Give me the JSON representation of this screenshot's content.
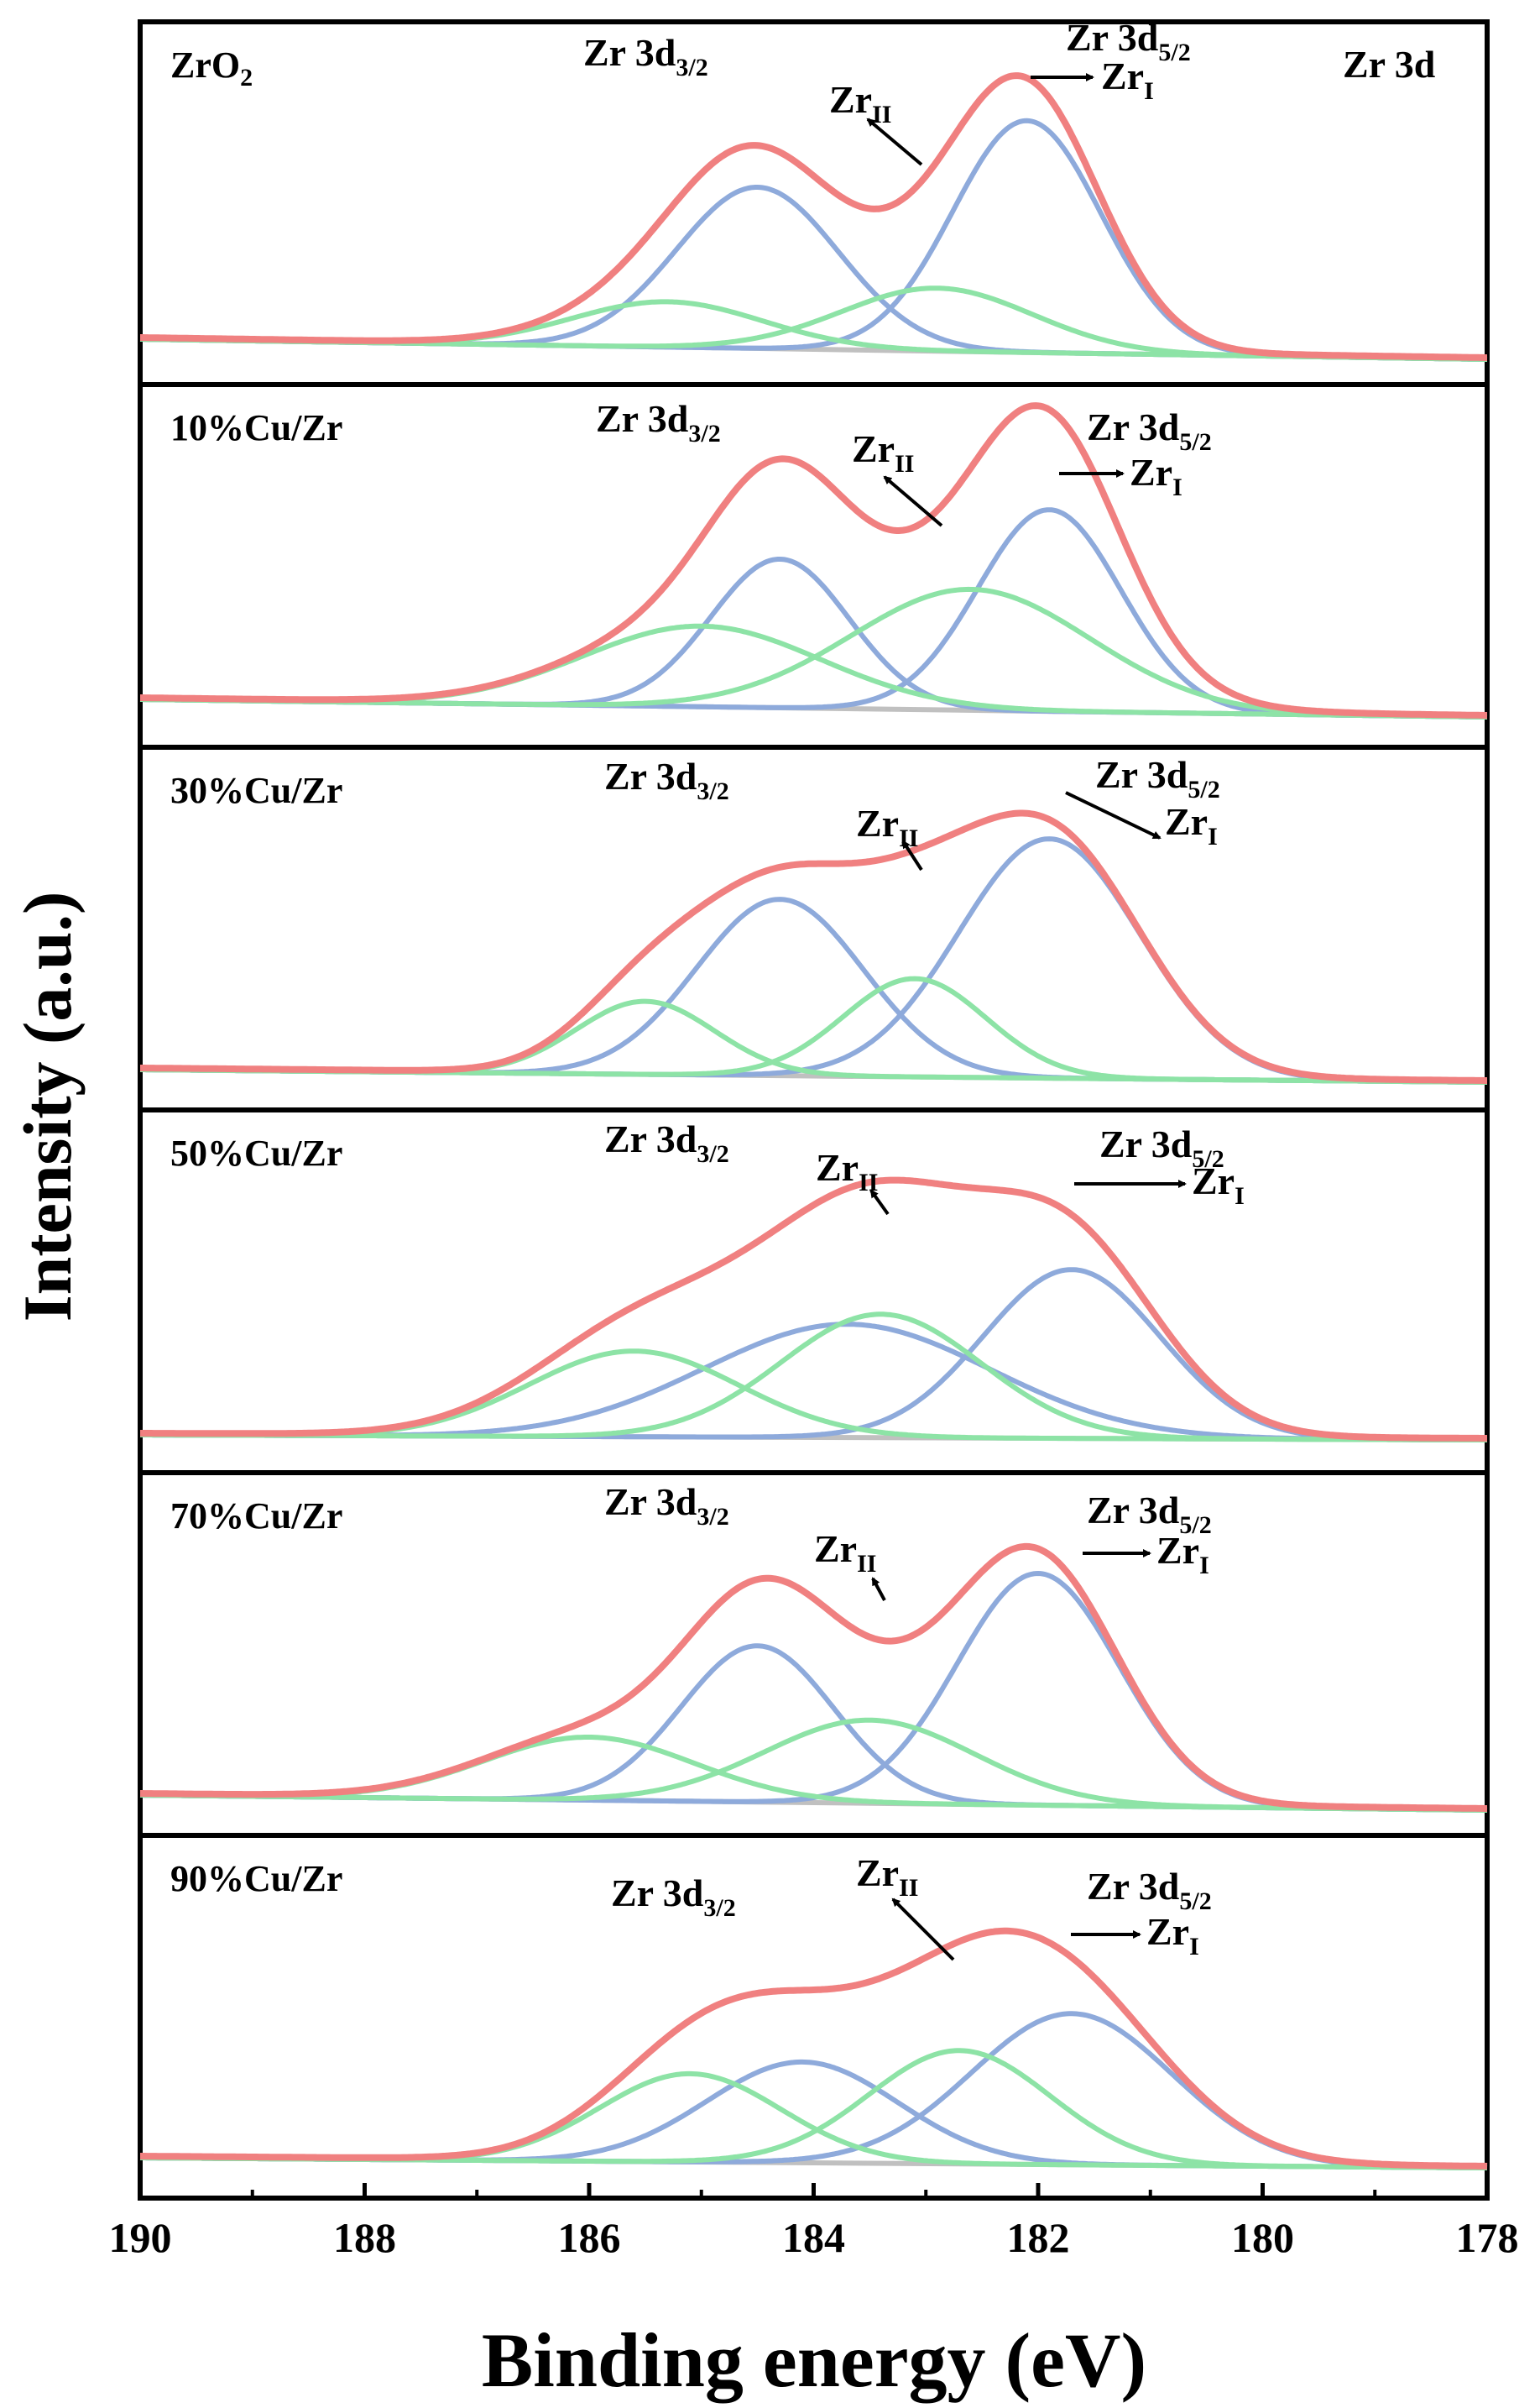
{
  "chart_data": {
    "type": "line",
    "title": "",
    "xlabel": "Binding energy (eV)",
    "ylabel": "Intensity (a.u.)",
    "xlim": [
      190,
      178
    ],
    "x_reversed": true,
    "x_ticks": [
      "190",
      "188",
      "186",
      "184",
      "182",
      "180",
      "178"
    ],
    "region_label": "Zr 3d",
    "colors": {
      "envelope": "#f08080",
      "zr_i": "#8eaadb",
      "zr_ii": "#8de3a6",
      "background": "#c0c0c0"
    },
    "annotation_text": {
      "zr3d32_main": "Zr 3d",
      "zr3d32_sub": "3/2",
      "zr3d52_main": "Zr 3d",
      "zr3d52_sub": "5/2",
      "zri_main": "Zr",
      "zri_sub": "I",
      "zrii_main": "Zr",
      "zrii_sub": "II"
    },
    "panels": [
      {
        "sample_main": "ZrO",
        "sample_sub": "2",
        "bg_start": 0.04,
        "bg_end": -0.04,
        "peaks": [
          {
            "component": "Zr I",
            "orbital": "3d5/2",
            "center": 182.1,
            "fwhm": 1.55,
            "height": 0.92
          },
          {
            "component": "Zr I",
            "orbital": "3d3/2",
            "center": 184.5,
            "fwhm": 1.7,
            "height": 0.64
          },
          {
            "component": "Zr II",
            "orbital": "3d5/2",
            "center": 182.9,
            "fwhm": 2.0,
            "height": 0.25
          },
          {
            "component": "Zr II",
            "orbital": "3d3/2",
            "center": 185.3,
            "fwhm": 2.0,
            "height": 0.18
          }
        ]
      },
      {
        "sample_main": "10%Cu/Zr",
        "sample_sub": "",
        "bg_start": 0.05,
        "bg_end": -0.02,
        "peaks": [
          {
            "component": "Zr I",
            "orbital": "3d5/2",
            "center": 181.9,
            "fwhm": 1.5,
            "height": 0.8
          },
          {
            "component": "Zr I",
            "orbital": "3d3/2",
            "center": 184.3,
            "fwhm": 1.45,
            "height": 0.59
          },
          {
            "component": "Zr II",
            "orbital": "3d5/2",
            "center": 182.6,
            "fwhm": 2.5,
            "height": 0.48
          },
          {
            "component": "Zr II",
            "orbital": "3d3/2",
            "center": 185.0,
            "fwhm": 2.5,
            "height": 0.32
          }
        ]
      },
      {
        "sample_main": "30%Cu/Zr",
        "sample_sub": "",
        "bg_start": 0.02,
        "bg_end": -0.03,
        "peaks": [
          {
            "component": "Zr I",
            "orbital": "3d5/2",
            "center": 181.9,
            "fwhm": 1.9,
            "height": 0.95
          },
          {
            "component": "Zr I",
            "orbital": "3d3/2",
            "center": 184.3,
            "fwhm": 1.75,
            "height": 0.7
          },
          {
            "component": "Zr II",
            "orbital": "3d5/2",
            "center": 183.1,
            "fwhm": 1.5,
            "height": 0.39
          },
          {
            "component": "Zr II",
            "orbital": "3d3/2",
            "center": 185.5,
            "fwhm": 1.45,
            "height": 0.29
          }
        ]
      },
      {
        "sample_main": "50%Cu/Zr",
        "sample_sub": "",
        "bg_start": 0.01,
        "bg_end": -0.01,
        "peaks": [
          {
            "component": "Zr I",
            "orbital": "3d5/2",
            "center": 181.7,
            "fwhm": 1.85,
            "height": 0.67
          },
          {
            "component": "Zr I",
            "orbital": "3d3/2",
            "center": 183.7,
            "fwhm": 3.0,
            "height": 0.45
          },
          {
            "component": "Zr II",
            "orbital": "3d5/2",
            "center": 183.4,
            "fwhm": 2.1,
            "height": 0.49
          },
          {
            "component": "Zr II",
            "orbital": "3d3/2",
            "center": 185.6,
            "fwhm": 2.2,
            "height": 0.34
          }
        ]
      },
      {
        "sample_main": "70%Cu/Zr",
        "sample_sub": "",
        "bg_start": 0.02,
        "bg_end": -0.04,
        "peaks": [
          {
            "component": "Zr I",
            "orbital": "3d5/2",
            "center": 182.0,
            "fwhm": 1.7,
            "height": 0.92
          },
          {
            "component": "Zr I",
            "orbital": "3d3/2",
            "center": 184.5,
            "fwhm": 1.6,
            "height": 0.62
          },
          {
            "component": "Zr II",
            "orbital": "3d5/2",
            "center": 183.5,
            "fwhm": 2.2,
            "height": 0.33
          },
          {
            "component": "Zr II",
            "orbital": "3d3/2",
            "center": 186.0,
            "fwhm": 2.2,
            "height": 0.25
          }
        ]
      },
      {
        "sample_main": "90%Cu/Zr",
        "sample_sub": "",
        "bg_start": 0.02,
        "bg_end": -0.02,
        "peaks": [
          {
            "component": "Zr I",
            "orbital": "3d5/2",
            "center": 181.7,
            "fwhm": 2.1,
            "height": 0.6
          },
          {
            "component": "Zr I",
            "orbital": "3d3/2",
            "center": 184.1,
            "fwhm": 2.0,
            "height": 0.4
          },
          {
            "component": "Zr II",
            "orbital": "3d5/2",
            "center": 182.7,
            "fwhm": 1.9,
            "height": 0.45
          },
          {
            "component": "Zr II",
            "orbital": "3d3/2",
            "center": 185.1,
            "fwhm": 1.9,
            "height": 0.35
          }
        ]
      }
    ]
  }
}
